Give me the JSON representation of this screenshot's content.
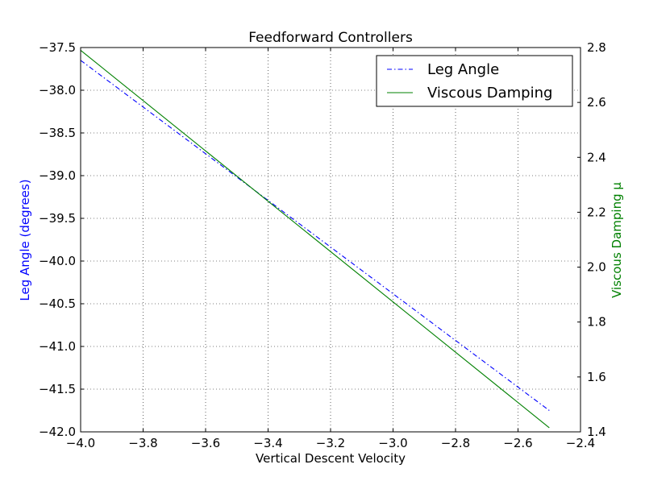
{
  "chart_data": {
    "type": "line",
    "title": "Feedforward Controllers",
    "xlabel": "Vertical Descent Velocity",
    "ylabel_left": "Leg Angle (degrees)",
    "ylabel_right": "Viscous Damping μ",
    "xlim": [
      -4.0,
      -2.4
    ],
    "ylim_left": [
      -42.0,
      -37.5
    ],
    "ylim_right": [
      1.4,
      2.8
    ],
    "x_ticks": [
      -4.0,
      -3.8,
      -3.6,
      -3.4,
      -3.2,
      -3.0,
      -2.8,
      -2.6,
      -2.4
    ],
    "x_tick_labels": [
      "−4.0",
      "−3.8",
      "−3.6",
      "−3.4",
      "−3.2",
      "−3.0",
      "−2.8",
      "−2.6",
      "−2.4"
    ],
    "y_left_ticks": [
      -42.0,
      -41.5,
      -41.0,
      -40.5,
      -40.0,
      -39.5,
      -39.0,
      -38.5,
      -38.0,
      -37.5
    ],
    "y_left_tick_labels": [
      "−42.0",
      "−41.5",
      "−41.0",
      "−40.5",
      "−40.0",
      "−39.5",
      "−39.0",
      "−38.5",
      "−38.0",
      "−37.5"
    ],
    "y_right_ticks": [
      1.4,
      1.6,
      1.8,
      2.0,
      2.2,
      2.4,
      2.6,
      2.8
    ],
    "y_right_tick_labels": [
      "1.4",
      "1.6",
      "1.8",
      "2.0",
      "2.2",
      "2.4",
      "2.6",
      "2.8"
    ],
    "grid": true,
    "legend_position": "top-right",
    "series": [
      {
        "name": "Leg Angle",
        "axis": "left",
        "color": "#0000ff",
        "linestyle": "dashdot",
        "x": [
          -4.0,
          -2.5
        ],
        "y": [
          -37.65,
          -41.75
        ]
      },
      {
        "name": "Viscous Damping",
        "axis": "right",
        "color": "#008000",
        "linestyle": "solid",
        "x": [
          -4.0,
          -2.5
        ],
        "y": [
          2.79,
          1.415
        ]
      }
    ]
  }
}
